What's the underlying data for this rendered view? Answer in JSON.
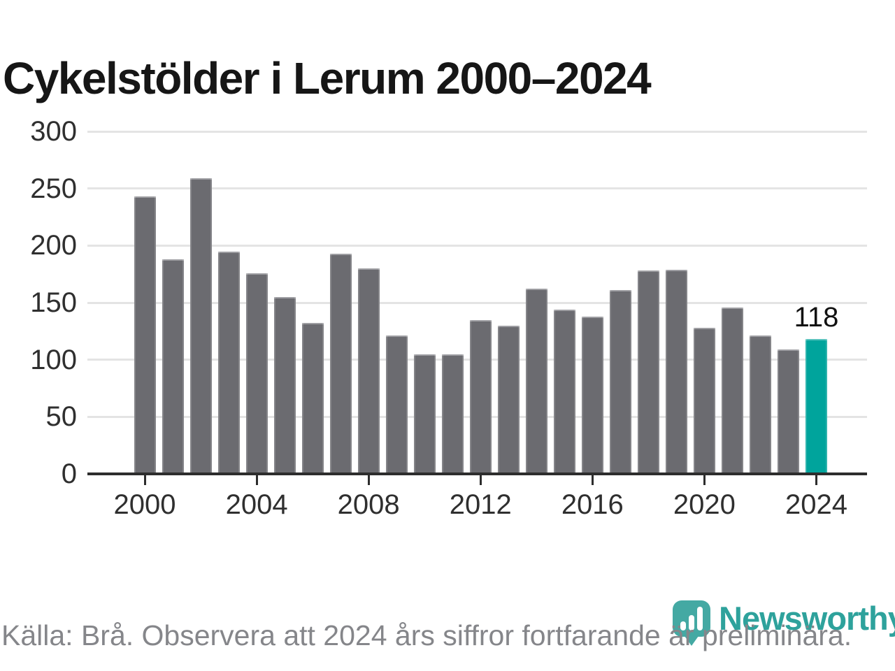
{
  "title": "Cykelstölder i Lerum 2000–2024",
  "chart_data": {
    "type": "bar",
    "title": "Cykelstölder i Lerum 2000–2024",
    "categories": [
      2000,
      2001,
      2002,
      2003,
      2004,
      2005,
      2006,
      2007,
      2008,
      2009,
      2010,
      2011,
      2012,
      2013,
      2014,
      2015,
      2016,
      2017,
      2018,
      2019,
      2020,
      2021,
      2022,
      2023,
      2024
    ],
    "values": [
      243,
      188,
      259,
      195,
      176,
      155,
      132,
      193,
      180,
      121,
      105,
      105,
      135,
      130,
      162,
      144,
      138,
      161,
      178,
      179,
      128,
      146,
      121,
      109,
      118
    ],
    "xlabel": "",
    "ylabel": "",
    "ylim": [
      0,
      300
    ],
    "yticks": [
      0,
      50,
      100,
      150,
      200,
      250,
      300
    ],
    "xtick_labels": [
      "2000",
      "2004",
      "2008",
      "2012",
      "2016",
      "2020",
      "2024"
    ],
    "xtick_indices": [
      0,
      4,
      8,
      12,
      16,
      20,
      24
    ],
    "grid": true,
    "legend": "none",
    "highlight": {
      "year": 2024,
      "value_label": "118"
    },
    "colors": {
      "bar": "#6b6b70",
      "highlight_bar": "#00a49c",
      "gridline": "#e4e4e4",
      "axis": "#2d2d2d"
    }
  },
  "footer": {
    "source_note": "Källa: Brå. Observera att 2024 års siffror fortfarande är preliminära."
  },
  "logo": {
    "name": "Newsworthy",
    "color": "#2ea29c"
  }
}
